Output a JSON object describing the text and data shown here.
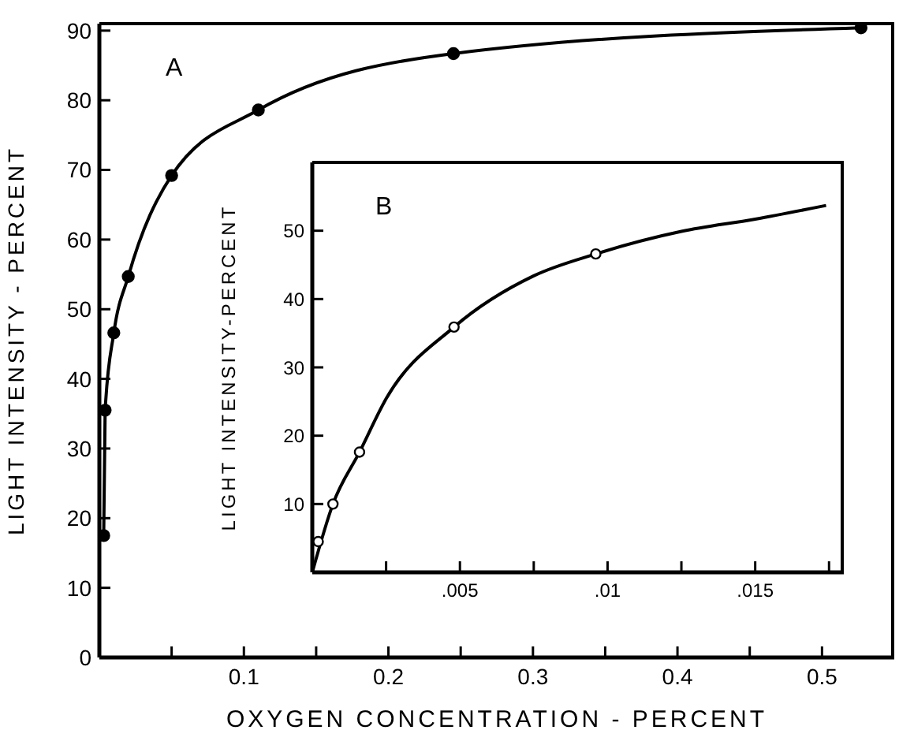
{
  "chart_data": [
    {
      "type": "line",
      "xlabel": "OXYGEN CONCENTRATION - PERCENT",
      "ylabel": "LIGHT INTENSITY - PERCENT",
      "annotations": [
        "A"
      ],
      "xlim": [
        0,
        0.55
      ],
      "xticks": [
        {
          "value": 0.05,
          "label": null
        },
        0.1,
        {
          "value": 0.15,
          "label": null
        },
        0.2,
        {
          "value": 0.25,
          "label": null
        },
        0.3,
        {
          "value": 0.35,
          "label": null
        },
        0.4,
        {
          "value": 0.45,
          "label": null
        },
        0.5
      ],
      "ylim": [
        0,
        91
      ],
      "yticks": [
        0,
        10,
        20,
        30,
        40,
        50,
        60,
        70,
        80,
        90
      ],
      "series": [
        {
          "marker": "circle",
          "color": "#000000",
          "x": [
            0.003,
            0.004,
            0.01,
            0.02,
            0.05,
            0.11,
            0.245,
            0.527
          ],
          "values": [
            17.5,
            35.5,
            46.6,
            54.7,
            69.2,
            78.6,
            86.7,
            90.4
          ]
        }
      ]
    },
    {
      "type": "line",
      "ylabel": "LIGHT INTENSITY-PERCENT",
      "annotations": [
        "B"
      ],
      "xlim": [
        0,
        0.018
      ],
      "xticks": [
        {
          "value": 0.0025,
          "label": null
        },
        {
          "value": 0.005,
          "label": ".005"
        },
        {
          "value": 0.0075,
          "label": null
        },
        {
          "value": 0.01,
          "label": ".01"
        },
        {
          "value": 0.0125,
          "label": null
        },
        {
          "value": 0.015,
          "label": ".015"
        },
        {
          "value": 0.0175,
          "label": null
        }
      ],
      "ylim": [
        0,
        60
      ],
      "yticks": [
        10,
        20,
        30,
        40,
        50
      ],
      "series": [
        {
          "marker": "none",
          "color": "#000000",
          "x": [
            0,
            0.0007,
            0.0016,
            0.0025,
            0.0048,
            0.0075,
            0.0096,
            0.0125,
            0.015,
            0.0174
          ],
          "values": [
            0,
            10,
            17.6,
            25.4,
            35.9,
            43.4,
            46.6,
            49.9,
            51.7,
            53.7
          ]
        },
        {
          "type": "scatter",
          "marker": "circle",
          "color": "#000000",
          "x": [
            0.0002,
            0.0007,
            0.0016,
            0.0048,
            0.0096
          ],
          "values": [
            4.5,
            10,
            17.6,
            35.9,
            46.6
          ]
        }
      ]
    }
  ]
}
